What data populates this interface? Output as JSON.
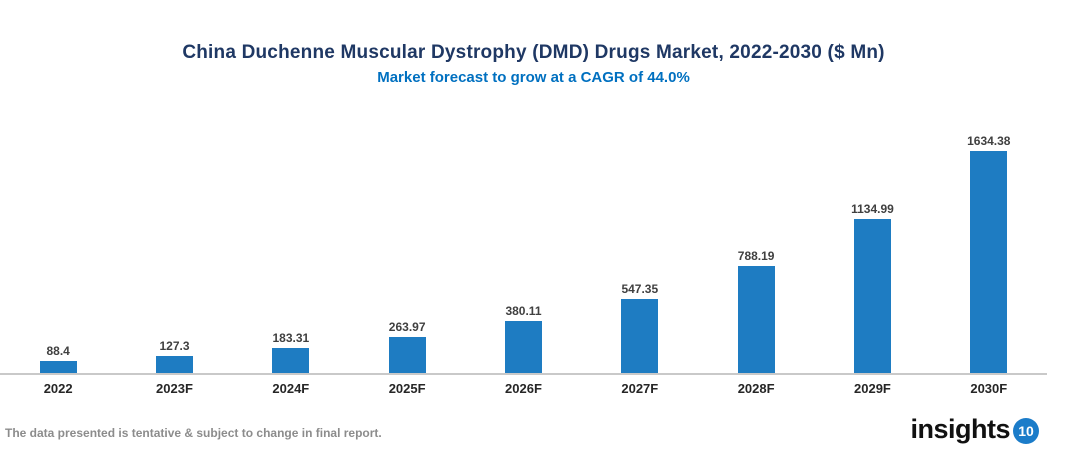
{
  "chart": {
    "title": "China Duchenne Muscular Dystrophy (DMD) Drugs Market, 2022-2030 ($ Mn)",
    "subtitle": "Market forecast to grow at a CAGR of 44.0%",
    "title_color": "#1F3864",
    "subtitle_color": "#0070C0",
    "bar_color": "#1E7CC2",
    "value_label_color": "#404040",
    "axis_line_color": "#C9C9C9"
  },
  "chart_data": {
    "type": "bar",
    "categories": [
      "2022",
      "2023F",
      "2024F",
      "2025F",
      "2026F",
      "2027F",
      "2028F",
      "2029F",
      "2030F"
    ],
    "values": [
      88.4,
      127.3,
      183.31,
      263.97,
      380.11,
      547.35,
      788.19,
      1134.99,
      1634.38
    ],
    "title": "China Duchenne Muscular Dystrophy (DMD) Drugs Market, 2022-2030 ($ Mn)",
    "subtitle": "Market forecast to grow at a CAGR of 44.0%",
    "xlabel": "",
    "ylabel": "",
    "ylim": [
      0,
      1634.38
    ],
    "grid": false,
    "legend": false,
    "data_labels": true,
    "bar_color": "#1E7CC2"
  },
  "footer": {
    "disclaimer": "The data presented is tentative & subject to change in final report.",
    "logo_text": "insights",
    "logo_badge": "10"
  }
}
